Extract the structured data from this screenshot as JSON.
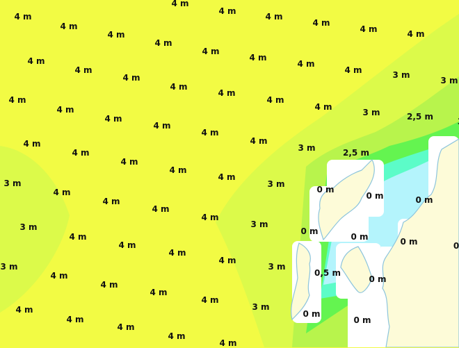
{
  "map": {
    "type": "wave-height",
    "colors": {
      "h4": "#f2fb44",
      "h3": "#dcfa4a",
      "h2_5": "#b8f44c",
      "h2": "#64f450",
      "h1": "#5cfcc8",
      "h0_5": "#b4f4fc",
      "land": "#fdfbd8",
      "coast": "#8cc4dc",
      "tile": "#ffffff"
    },
    "labels": [
      "4 m",
      "4 m",
      "4 m",
      "4 m",
      "4 m",
      "4 m",
      "4 m",
      "4 m",
      "4 m",
      "4 m",
      "4 m",
      "4 m",
      "4 m",
      "4 m",
      "3 m",
      "3 m",
      "4 m",
      "4 m",
      "4 m",
      "4 m",
      "4 m",
      "4 m",
      "4 m",
      "3 m",
      "2,5 m",
      "3",
      "4 m",
      "4 m",
      "4 m",
      "4 m",
      "4 m",
      "4 m",
      "3 m",
      "2,5 m",
      "4 m",
      "4 m",
      "4 m",
      "4 m",
      "4 m",
      "3 m",
      "0 m",
      "0 m",
      "0 m",
      "3 m",
      "4 m",
      "4 m",
      "4 m",
      "4 m",
      "3 m",
      "0 m",
      "0 m",
      "0 m",
      "0",
      "3 m",
      "4 m",
      "4 m",
      "4 m",
      "4 m",
      "3 m",
      "0,5 m",
      "0 m",
      "3 m",
      "4 m",
      "4 m",
      "4 m",
      "4 m",
      "3 m",
      "0 m",
      "0 m",
      "4 m",
      "4 m",
      "4 m",
      "4 m",
      "4 m"
    ]
  }
}
